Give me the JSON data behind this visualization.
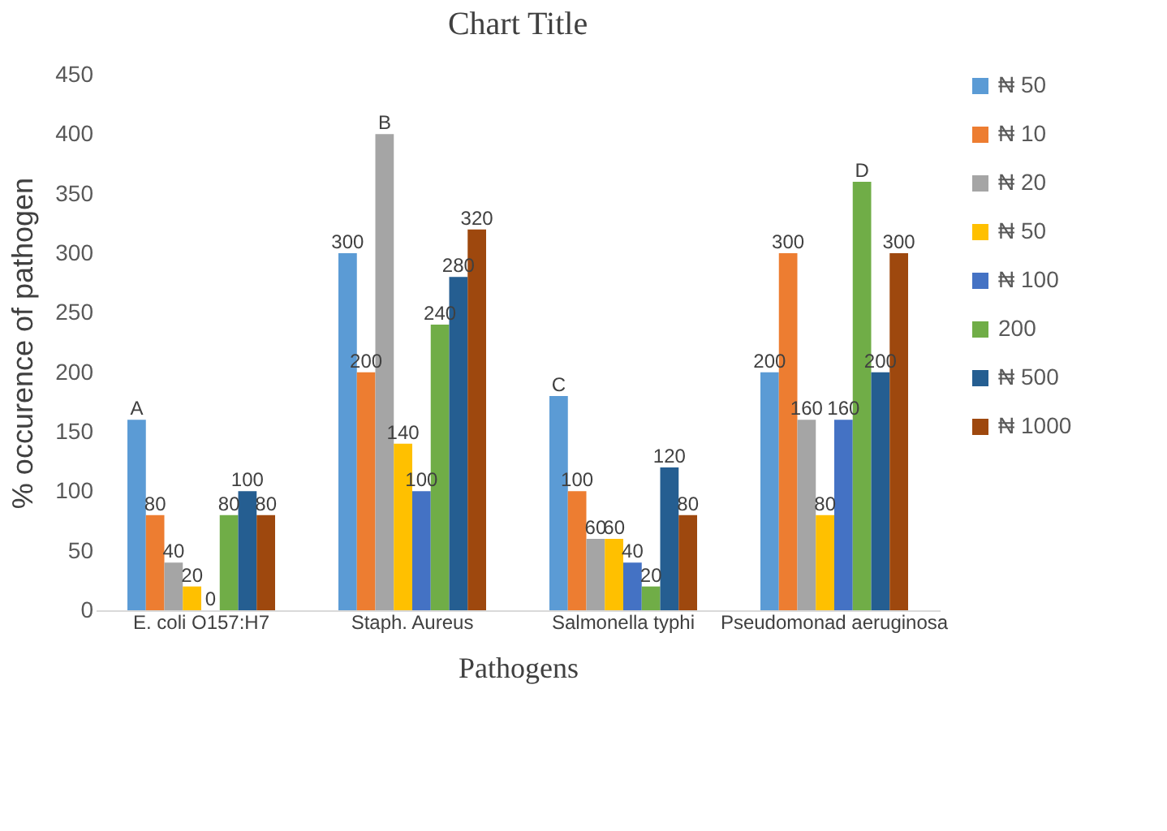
{
  "chart_data": {
    "type": "bar",
    "title": "Chart Title",
    "xlabel": "Pathogens",
    "ylabel": "% occurence of pathogen",
    "categories": [
      "E. coli O157:H7",
      "Staph. Aureus",
      "Salmonella typhi",
      "Pseudomonad aeruginosa"
    ],
    "series": [
      {
        "name": "₦ 50",
        "color": "#5b9bd5",
        "values": [
          160,
          300,
          180,
          200
        ],
        "value_labels": [
          "A",
          "300",
          "C",
          "200"
        ]
      },
      {
        "name": "₦ 10",
        "color": "#ed7d31",
        "values": [
          80,
          200,
          100,
          300
        ],
        "value_labels": [
          "80",
          "200",
          "100",
          "300"
        ]
      },
      {
        "name": "₦ 20",
        "color": "#a5a5a5",
        "values": [
          40,
          400,
          60,
          160
        ],
        "value_labels": [
          "40",
          "B",
          "60",
          "160"
        ]
      },
      {
        "name": "₦ 50",
        "color": "#ffc000",
        "values": [
          20,
          140,
          60,
          80
        ],
        "value_labels": [
          "20",
          "140",
          "60",
          "80"
        ]
      },
      {
        "name": "₦ 100",
        "color": "#4472c4",
        "values": [
          0,
          100,
          40,
          160
        ],
        "value_labels": [
          "0",
          "100",
          "40",
          "160"
        ]
      },
      {
        "name": "200",
        "color": "#70ad47",
        "values": [
          80,
          240,
          20,
          360
        ],
        "value_labels": [
          "80",
          "240",
          "20",
          "D"
        ]
      },
      {
        "name": "₦ 500",
        "color": "#255e91",
        "values": [
          100,
          280,
          120,
          200
        ],
        "value_labels": [
          "100",
          "280",
          "120",
          "200"
        ]
      },
      {
        "name": "₦ 1000",
        "color": "#9e480e",
        "values": [
          80,
          320,
          80,
          300
        ],
        "value_labels": [
          "80",
          "320",
          "80",
          "300"
        ]
      }
    ],
    "ylim": [
      0,
      450
    ],
    "yticks": [
      0,
      50,
      100,
      150,
      200,
      250,
      300,
      350,
      400,
      450
    ],
    "grid": false,
    "legend": "right"
  }
}
